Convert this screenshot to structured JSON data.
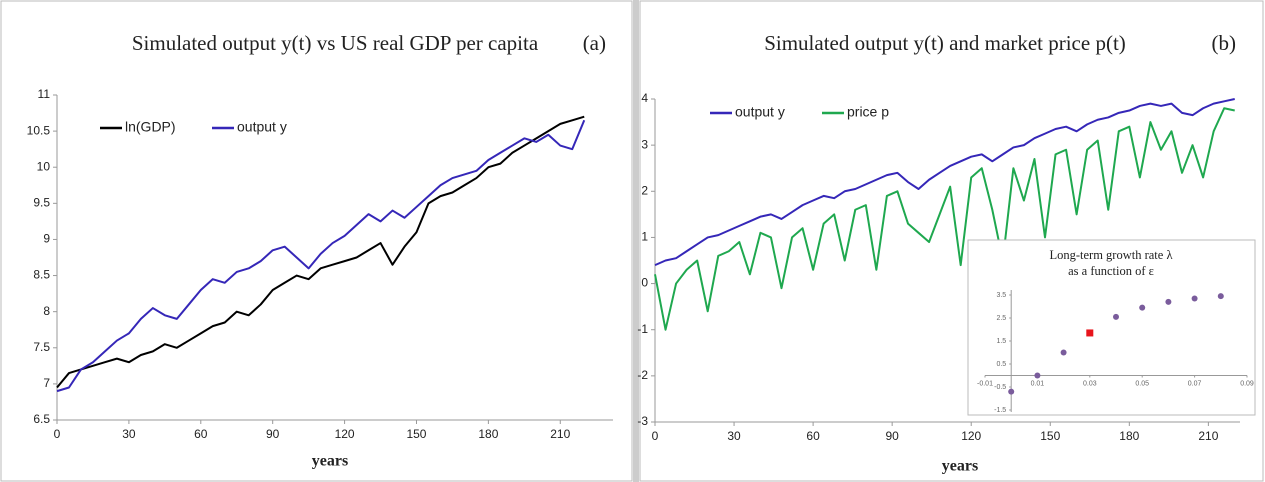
{
  "chart_data": [
    {
      "type": "line",
      "title": "Simulated output y(t) vs US real GDP per capita",
      "panel_label": "(a)",
      "xlabel": "years",
      "x": [
        0,
        5,
        10,
        15,
        20,
        25,
        30,
        35,
        40,
        45,
        50,
        55,
        60,
        65,
        70,
        75,
        80,
        85,
        90,
        95,
        100,
        105,
        110,
        115,
        120,
        125,
        130,
        135,
        140,
        145,
        150,
        155,
        160,
        165,
        170,
        175,
        180,
        185,
        190,
        195,
        200,
        205,
        210,
        215,
        220
      ],
      "series": [
        {
          "name": "ln(GDP)",
          "color": "#000000",
          "values": [
            6.95,
            7.15,
            7.2,
            7.25,
            7.3,
            7.35,
            7.3,
            7.4,
            7.45,
            7.55,
            7.5,
            7.6,
            7.7,
            7.8,
            7.85,
            8.0,
            7.95,
            8.1,
            8.3,
            8.4,
            8.5,
            8.45,
            8.6,
            8.65,
            8.7,
            8.75,
            8.85,
            8.95,
            8.65,
            8.9,
            9.1,
            9.5,
            9.6,
            9.65,
            9.75,
            9.85,
            10.0,
            10.05,
            10.2,
            10.3,
            10.4,
            10.5,
            10.6,
            10.65,
            10.7
          ]
        },
        {
          "name": "output y",
          "color": "#3527b8",
          "values": [
            6.9,
            6.95,
            7.2,
            7.3,
            7.45,
            7.6,
            7.7,
            7.9,
            8.05,
            7.95,
            7.9,
            8.1,
            8.3,
            8.45,
            8.4,
            8.55,
            8.6,
            8.7,
            8.85,
            8.9,
            8.75,
            8.6,
            8.8,
            8.95,
            9.05,
            9.2,
            9.35,
            9.25,
            9.4,
            9.3,
            9.45,
            9.6,
            9.75,
            9.85,
            9.9,
            9.95,
            10.1,
            10.2,
            10.3,
            10.4,
            10.35,
            10.45,
            10.3,
            10.25,
            10.65
          ]
        }
      ],
      "xlim": [
        0,
        232
      ],
      "xticks": [
        0,
        30,
        60,
        90,
        120,
        150,
        180,
        210
      ],
      "ylim": [
        6.5,
        11
      ],
      "yticks": [
        6.5,
        7,
        7.5,
        8,
        8.5,
        9,
        9.5,
        10,
        10.5,
        11
      ]
    },
    {
      "type": "line",
      "title": "Simulated output y(t) and market price p(t)",
      "panel_label": "(b)",
      "xlabel": "years",
      "x": [
        0,
        4,
        8,
        12,
        16,
        20,
        24,
        28,
        32,
        36,
        40,
        44,
        48,
        52,
        56,
        60,
        64,
        68,
        72,
        76,
        80,
        84,
        88,
        92,
        96,
        100,
        104,
        108,
        112,
        116,
        120,
        124,
        128,
        132,
        136,
        140,
        144,
        148,
        152,
        156,
        160,
        164,
        168,
        172,
        176,
        180,
        184,
        188,
        192,
        196,
        200,
        204,
        208,
        212,
        216,
        220
      ],
      "series": [
        {
          "name": "output y",
          "color": "#3527b8",
          "values": [
            0.4,
            0.5,
            0.55,
            0.7,
            0.85,
            1.0,
            1.05,
            1.15,
            1.25,
            1.35,
            1.45,
            1.5,
            1.4,
            1.55,
            1.7,
            1.8,
            1.9,
            1.85,
            2.0,
            2.05,
            2.15,
            2.25,
            2.35,
            2.4,
            2.2,
            2.05,
            2.25,
            2.4,
            2.55,
            2.65,
            2.75,
            2.8,
            2.65,
            2.8,
            2.95,
            3.0,
            3.15,
            3.25,
            3.35,
            3.4,
            3.3,
            3.45,
            3.55,
            3.6,
            3.7,
            3.75,
            3.85,
            3.9,
            3.85,
            3.9,
            3.7,
            3.65,
            3.8,
            3.9,
            3.95,
            4.0
          ]
        },
        {
          "name": "price p",
          "color": "#1fa84f",
          "values": [
            0.2,
            -1.0,
            0.0,
            0.3,
            0.5,
            -0.6,
            0.6,
            0.7,
            0.9,
            0.2,
            1.1,
            1.0,
            -0.1,
            1.0,
            1.2,
            0.3,
            1.3,
            1.5,
            0.5,
            1.6,
            1.7,
            0.3,
            1.9,
            2.0,
            1.3,
            1.1,
            0.9,
            1.5,
            2.1,
            0.4,
            2.3,
            2.5,
            1.6,
            0.5,
            2.5,
            1.8,
            2.7,
            1.0,
            2.8,
            2.9,
            1.5,
            2.9,
            3.1,
            1.6,
            3.3,
            3.4,
            2.3,
            3.5,
            2.9,
            3.3,
            2.4,
            3.0,
            2.3,
            3.3,
            3.8,
            3.75
          ]
        }
      ],
      "xlim": [
        0,
        222
      ],
      "xticks": [
        0,
        30,
        60,
        90,
        120,
        150,
        180,
        210
      ],
      "ylim": [
        -3,
        4
      ],
      "yticks": [
        -3,
        -2,
        -1,
        0,
        1,
        2,
        3,
        4
      ]
    },
    {
      "type": "scatter",
      "title": [
        "Long-term growth rate λ",
        "as a function of ε"
      ],
      "x": [
        0,
        0.01,
        0.02,
        0.03,
        0.04,
        0.05,
        0.06,
        0.07,
        0.08
      ],
      "values": [
        -0.7,
        0,
        1.0,
        1.85,
        2.55,
        2.95,
        3.2,
        3.35,
        3.45
      ],
      "colors": [
        "#7a5c9c",
        "#7a5c9c",
        "#7a5c9c",
        "#e8141c",
        "#7a5c9c",
        "#7a5c9c",
        "#7a5c9c",
        "#7a5c9c",
        "#7a5c9c"
      ],
      "markers": [
        "circle",
        "circle",
        "circle",
        "square",
        "circle",
        "circle",
        "circle",
        "circle",
        "circle"
      ],
      "xlim": [
        -0.01,
        0.09
      ],
      "xticks": [
        -0.01,
        0.01,
        0.03,
        0.05,
        0.07,
        0.09
      ],
      "ylim": [
        -1.5,
        3.5
      ],
      "yticks": [
        -1.5,
        -0.5,
        0.5,
        1.5,
        2.5,
        3.5
      ]
    }
  ]
}
